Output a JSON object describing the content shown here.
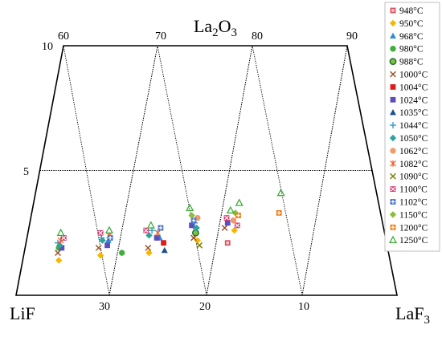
{
  "chart_data": {
    "type": "scatter",
    "coordinate_system": "ternary (trapezoid section LiF–LaF3–La2O3)",
    "corner_labels": {
      "top": "La2O3",
      "bottom_left": "LiF",
      "bottom_right": "LaF3"
    },
    "top_ticks": [
      "60",
      "70",
      "80",
      "90"
    ],
    "bottom_ticks": [
      "30",
      "20",
      "10"
    ],
    "left_ticks": [
      "10",
      "5"
    ],
    "legend_placement": "right",
    "series": [
      {
        "name": "948°C",
        "marker": "square-open-inner",
        "color": "#d94f5c",
        "points": [
          [
            17.5,
            2.1
          ]
        ]
      },
      {
        "name": "950°C",
        "marker": "diamond",
        "color": "#f5b800",
        "points": [
          [
            34.9,
            1.4
          ],
          [
            30.6,
            1.6
          ],
          [
            25.6,
            1.7
          ],
          [
            20.6,
            2.2
          ],
          [
            16.8,
            2.6
          ]
        ]
      },
      {
        "name": "968°C",
        "marker": "triangle",
        "color": "#2e8fd6",
        "points": [
          [
            29.8,
            2.2
          ],
          [
            24.5,
            2.3
          ]
        ]
      },
      {
        "name": "980°C",
        "marker": "circle",
        "color": "#3fae3a",
        "points": [
          [
            34.9,
            1.9
          ],
          [
            28.4,
            1.7
          ]
        ]
      },
      {
        "name": "988°C",
        "marker": "circle-ring",
        "color": "#1a6b2a",
        "points": [
          [
            20.8,
            2.5
          ]
        ]
      },
      {
        "name": "1000°C",
        "marker": "x",
        "color": "#9b4a1f",
        "points": [
          [
            35.0,
            1.7
          ],
          [
            30.8,
            1.9
          ],
          [
            25.7,
            1.9
          ],
          [
            21.0,
            2.3
          ],
          [
            17.8,
            2.7
          ]
        ]
      },
      {
        "name": "1004°C",
        "marker": "square",
        "color": "#e01b1b",
        "points": [
          [
            24.1,
            2.1
          ]
        ]
      },
      {
        "name": "1024°C",
        "marker": "square",
        "color": "#5b4fbf",
        "points": [
          [
            34.6,
            1.9
          ],
          [
            29.9,
            2.0
          ],
          [
            24.8,
            2.3
          ],
          [
            21.2,
            2.8
          ],
          [
            17.5,
            2.9
          ]
        ]
      },
      {
        "name": "1035°C",
        "marker": "triangle",
        "color": "#1f4f8f",
        "points": [
          [
            24.0,
            1.8
          ]
        ]
      },
      {
        "name": "1044°C",
        "marker": "plus",
        "color": "#2e9bd6",
        "points": [
          [
            35.0,
            2.1
          ],
          [
            30.5,
            2.3
          ],
          [
            25.3,
            2.6
          ],
          [
            20.9,
            2.9
          ]
        ]
      },
      {
        "name": "1050°C",
        "marker": "diamond",
        "color": "#2fa39a",
        "points": [
          [
            34.8,
            2.0
          ],
          [
            30.4,
            2.2
          ],
          [
            25.6,
            2.4
          ],
          [
            20.7,
            2.7
          ]
        ]
      },
      {
        "name": "1062°C",
        "marker": "circle",
        "color": "#f39a6b",
        "points": [
          [
            20.6,
            3.1
          ],
          [
            16.9,
            3.0
          ]
        ]
      },
      {
        "name": "1082°C",
        "marker": "asterisk",
        "color": "#e8612c",
        "points": [
          [
            34.7,
            2.2
          ],
          [
            29.7,
            2.4
          ],
          [
            24.7,
            2.5
          ]
        ]
      },
      {
        "name": "1090°C",
        "marker": "x",
        "color": "#7a7a00",
        "points": [
          [
            20.4,
            2.0
          ]
        ]
      },
      {
        "name": "1100°C",
        "marker": "square-x",
        "color": "#d6336c",
        "points": [
          [
            34.4,
            2.3
          ],
          [
            30.6,
            2.5
          ],
          [
            25.9,
            2.6
          ],
          [
            17.6,
            3.1
          ],
          [
            16.5,
            2.8
          ]
        ]
      },
      {
        "name": "1102°C",
        "marker": "square-plus",
        "color": "#4a74c9",
        "points": [
          [
            29.6,
            2.3
          ],
          [
            24.4,
            2.7
          ],
          [
            21.0,
            3.0
          ]
        ]
      },
      {
        "name": "1150°C",
        "marker": "diamond",
        "color": "#8bbf3a",
        "points": [
          [
            21.2,
            3.2
          ],
          [
            16.7,
            3.3
          ]
        ]
      },
      {
        "name": "1200°C",
        "marker": "square-plus",
        "color": "#f07f1a",
        "points": [
          [
            12.2,
            3.3
          ],
          [
            16.4,
            3.2
          ]
        ]
      },
      {
        "name": "1250°C",
        "marker": "triangle-open",
        "color": "#3fae3a",
        "points": [
          [
            34.7,
            2.5
          ],
          [
            29.7,
            2.6
          ],
          [
            25.4,
            2.8
          ],
          [
            21.4,
            3.5
          ],
          [
            17.2,
            3.4
          ],
          [
            16.3,
            3.7
          ],
          [
            12.0,
            4.1
          ]
        ]
      }
    ]
  }
}
